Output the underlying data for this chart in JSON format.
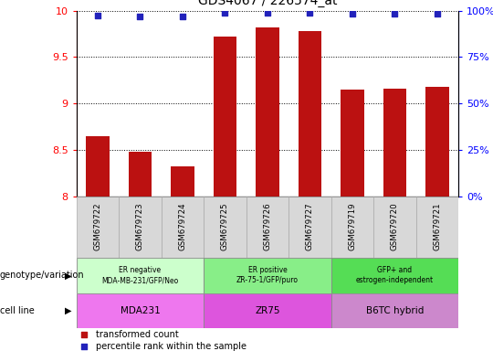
{
  "title": "GDS4067 / 226574_at",
  "samples": [
    "GSM679722",
    "GSM679723",
    "GSM679724",
    "GSM679725",
    "GSM679726",
    "GSM679727",
    "GSM679719",
    "GSM679720",
    "GSM679721"
  ],
  "bar_values": [
    8.65,
    8.48,
    8.32,
    9.72,
    9.82,
    9.78,
    9.15,
    9.16,
    9.18
  ],
  "percentile_values": [
    97.5,
    97.0,
    96.8,
    98.8,
    98.8,
    98.8,
    98.5,
    98.3,
    98.5
  ],
  "ylim_left": [
    8,
    10
  ],
  "ylim_right": [
    0,
    100
  ],
  "yticks_left": [
    8,
    8.5,
    9,
    9.5,
    10
  ],
  "yticks_right": [
    0,
    25,
    50,
    75,
    100
  ],
  "bar_color": "#bb1111",
  "dot_color": "#2222bb",
  "groups": [
    {
      "label": "ER negative\nMDA-MB-231/GFP/Neo",
      "start": 0,
      "end": 3,
      "color": "#ccffcc"
    },
    {
      "label": "ER positive\nZR-75-1/GFP/puro",
      "start": 3,
      "end": 6,
      "color": "#88ee88"
    },
    {
      "label": "GFP+ and\nestrogen-independent",
      "start": 6,
      "end": 9,
      "color": "#55dd55"
    }
  ],
  "cell_lines": [
    {
      "label": "MDA231",
      "start": 0,
      "end": 3,
      "color": "#ee77ee"
    },
    {
      "label": "ZR75",
      "start": 3,
      "end": 6,
      "color": "#dd55dd"
    },
    {
      "label": "B6TC hybrid",
      "start": 6,
      "end": 9,
      "color": "#cc88cc"
    }
  ],
  "genotype_label": "genotype/variation",
  "cell_line_label": "cell line",
  "legend_bar": "transformed count",
  "legend_dot": "percentile rank within the sample",
  "title_fontsize": 10,
  "tick_fontsize": 8,
  "sample_bg": "#d8d8d8"
}
